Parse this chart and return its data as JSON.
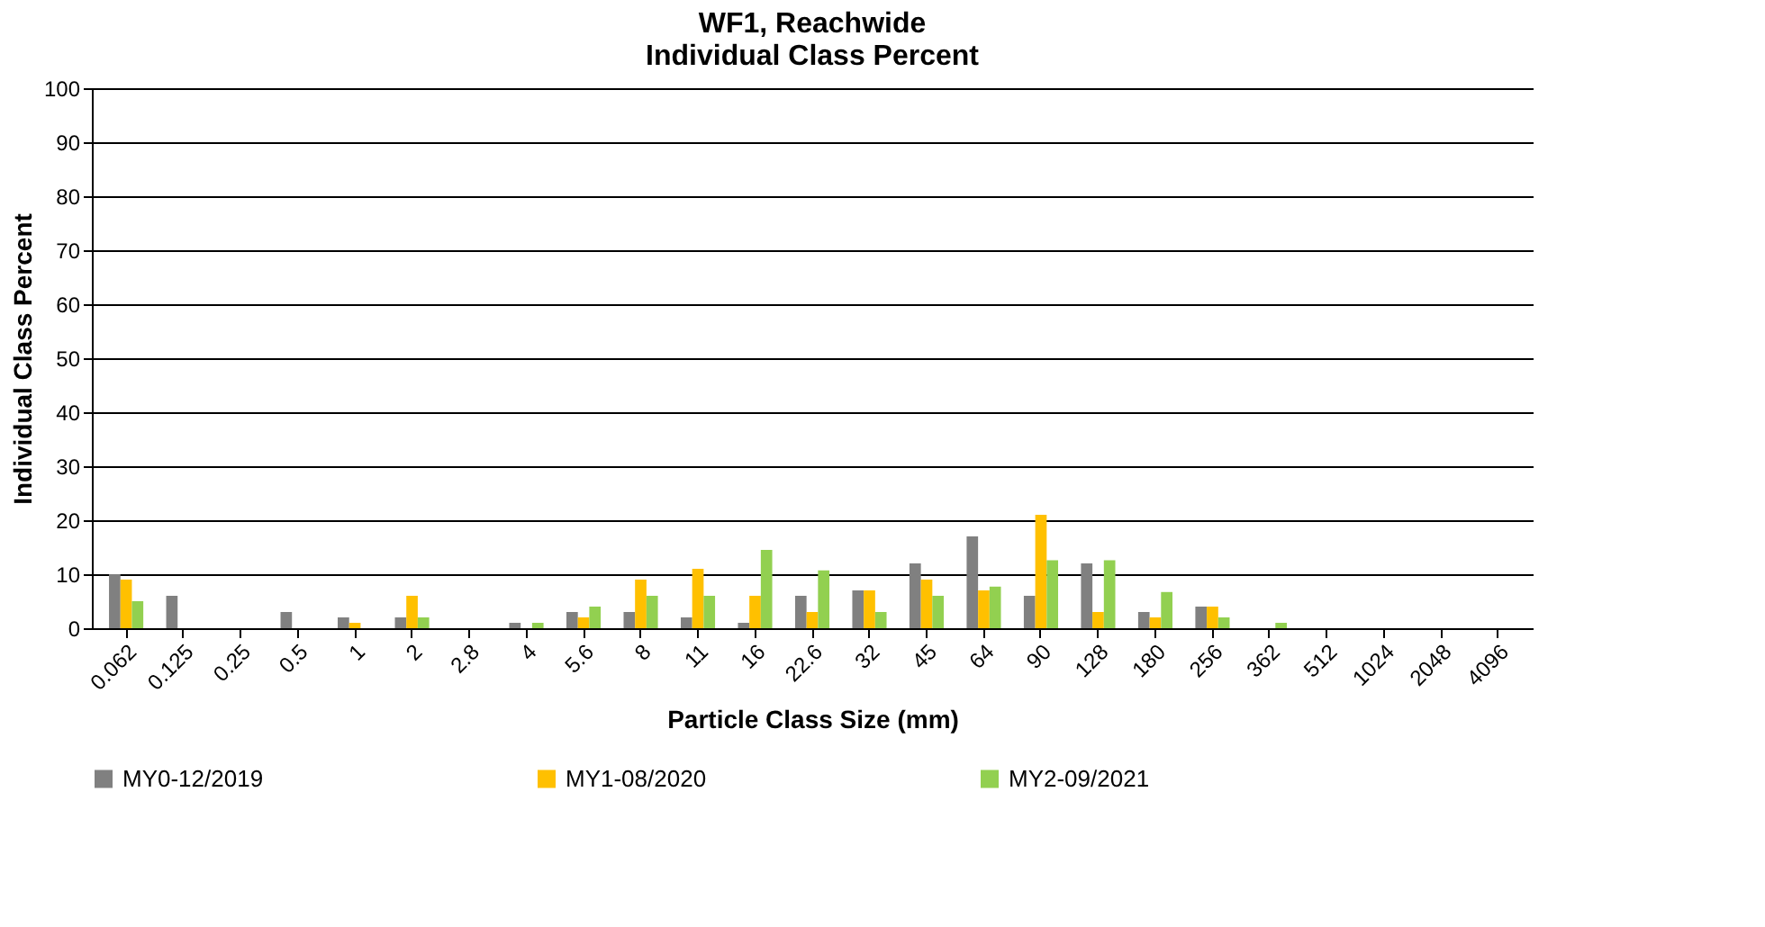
{
  "chart_data": {
    "type": "bar",
    "title": "WF1, Reachwide\nIndividual Class Percent",
    "xlabel": "Particle Class Size (mm)",
    "ylabel": "Individual Class Percent",
    "categories": [
      "0.062",
      "0.125",
      "0.25",
      "0.5",
      "1",
      "2",
      "2.8",
      "4",
      "5.6",
      "8",
      "11",
      "16",
      "22.6",
      "32",
      "45",
      "64",
      "90",
      "128",
      "180",
      "256",
      "362",
      "512",
      "1024",
      "2048",
      "4096"
    ],
    "series": [
      {
        "name": "MY0-12/2019",
        "color": "#808080",
        "values": [
          10,
          6,
          0,
          3,
          2,
          2,
          0,
          1,
          3,
          3,
          2,
          1,
          6,
          7,
          12,
          17,
          6,
          12,
          3,
          4,
          0,
          0,
          0,
          0,
          0
        ]
      },
      {
        "name": "MY1-08/2020",
        "color": "#ffc000",
        "values": [
          9,
          0,
          0,
          0,
          1,
          6,
          0,
          0,
          2,
          9,
          11,
          6,
          3,
          7,
          9,
          7,
          21,
          3,
          2,
          4,
          0,
          0,
          0,
          0,
          0
        ]
      },
      {
        "name": "MY2-09/2021",
        "color": "#92d050",
        "values": [
          5,
          0,
          0,
          0,
          0,
          2,
          0,
          1,
          4,
          6,
          6,
          14.5,
          10.7,
          3,
          6,
          7.7,
          12.6,
          12.6,
          6.7,
          2,
          1,
          0,
          0,
          0,
          0
        ]
      }
    ],
    "ylim": [
      0,
      100
    ],
    "yticks": [
      0,
      10,
      20,
      30,
      40,
      50,
      60,
      70,
      80,
      90,
      100
    ],
    "grid": "y",
    "legend": "bottom"
  }
}
